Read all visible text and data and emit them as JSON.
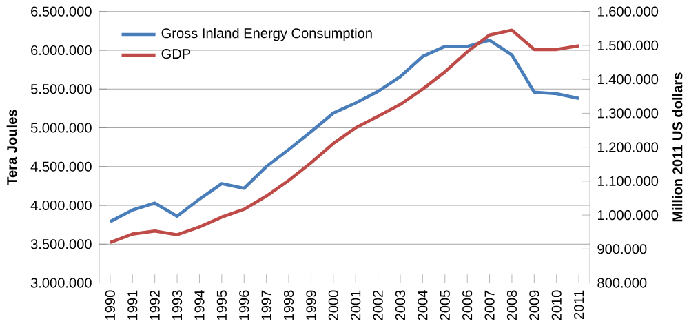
{
  "chart_data": {
    "type": "line",
    "categories": [
      "1990",
      "1991",
      "1992",
      "1993",
      "1994",
      "1995",
      "1996",
      "1997",
      "1998",
      "1999",
      "2000",
      "2001",
      "2002",
      "2003",
      "2004",
      "2005",
      "2006",
      "2007",
      "2008",
      "2009",
      "2010",
      "2011"
    ],
    "series": [
      {
        "name": "Gross Inland  Energy Consumption",
        "color": "#4a7ebb",
        "values": [
          3790000,
          3940000,
          4030000,
          3860000,
          4080000,
          4280000,
          4220000,
          4500000,
          4720000,
          4950000,
          5190000,
          5320000,
          5470000,
          5660000,
          5920000,
          6050000,
          6050000,
          6130000,
          5940000,
          5460000,
          5440000,
          5380000
        ]
      },
      {
        "name": "GDP",
        "color": "#be4b48",
        "axis": "y2",
        "values": [
          919000,
          944000,
          953000,
          942000,
          965000,
          994000,
          1017000,
          1056000,
          1102000,
          1154000,
          1211000,
          1257000,
          1291000,
          1326000,
          1371000,
          1422000,
          1481000,
          1531000,
          1545000,
          1488000,
          1488000,
          1499000
        ]
      }
    ],
    "ylabel": "Tera Joules",
    "y2label": "Million 2011 US dollars",
    "ylim": [
      3000000,
      6500000
    ],
    "yticks": [
      {
        "value": 3000000,
        "label": "3.000.000"
      },
      {
        "value": 3500000,
        "label": "3.500.000"
      },
      {
        "value": 4000000,
        "label": "4.000.000"
      },
      {
        "value": 4500000,
        "label": "4.500.000"
      },
      {
        "value": 5000000,
        "label": "5.000.000"
      },
      {
        "value": 5500000,
        "label": "5.500.000"
      },
      {
        "value": 6000000,
        "label": "6.000.000"
      },
      {
        "value": 6500000,
        "label": "6.500.000"
      }
    ],
    "y2lim": [
      800000,
      1600000
    ],
    "y2ticks": [
      {
        "value": 800000,
        "label": "800.000"
      },
      {
        "value": 900000,
        "label": "900.000"
      },
      {
        "value": 1000000,
        "label": "1.000.000"
      },
      {
        "value": 1100000,
        "label": "1.100.000"
      },
      {
        "value": 1200000,
        "label": "1.200.000"
      },
      {
        "value": 1300000,
        "label": "1.300.000"
      },
      {
        "value": 1400000,
        "label": "1.400.000"
      },
      {
        "value": 1500000,
        "label": "1.500.000"
      },
      {
        "value": 1600000,
        "label": "1.600.000"
      }
    ],
    "grid": "y",
    "legend": "top left",
    "marker": "none",
    "line_style": "solid"
  }
}
